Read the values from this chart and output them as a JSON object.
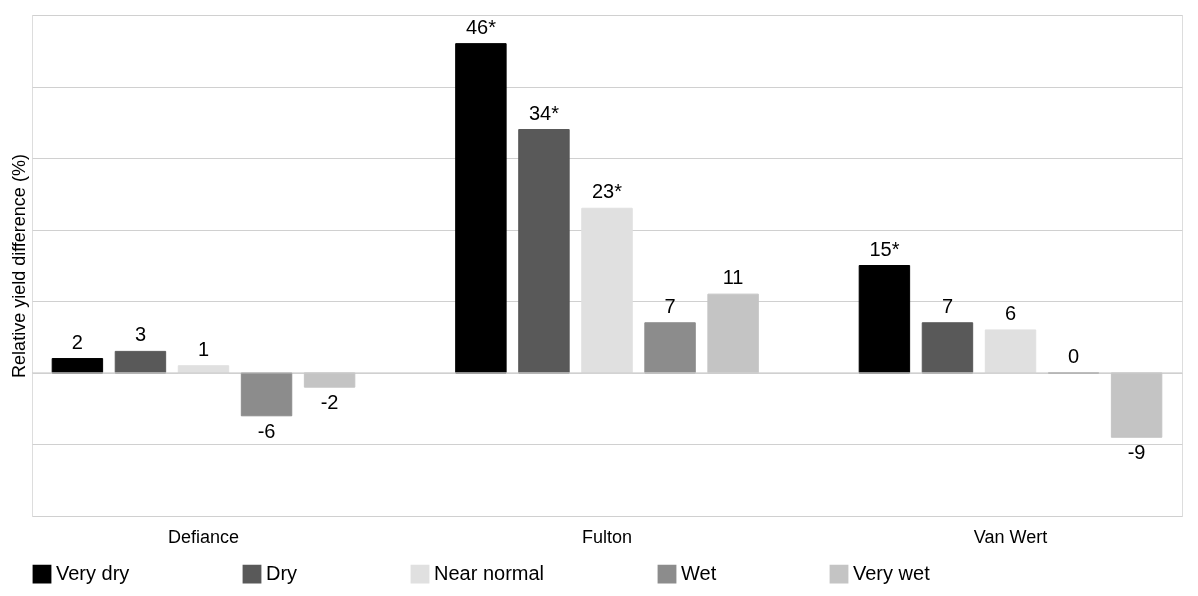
{
  "chart_data": {
    "type": "bar",
    "ylabel": "Relative yield difference (%)",
    "categories": [
      "Defiance",
      "Fulton",
      "Van Wert"
    ],
    "series": [
      {
        "name": "Very dry",
        "color": "#000000",
        "values": [
          2,
          46,
          15
        ],
        "value_labels": [
          "2",
          "46*",
          "15*"
        ]
      },
      {
        "name": "Dry",
        "color": "#595959",
        "values": [
          3,
          34,
          7
        ],
        "value_labels": [
          "3",
          "34*",
          "7"
        ]
      },
      {
        "name": "Near normal",
        "color": "#e0e0e0",
        "values": [
          1,
          23,
          6
        ],
        "value_labels": [
          "1",
          "23*",
          "6"
        ]
      },
      {
        "name": "Wet",
        "color": "#8c8c8c",
        "values": [
          -6,
          7,
          0
        ],
        "value_labels": [
          "-6",
          "7",
          "0"
        ]
      },
      {
        "name": "Very wet",
        "color": "#c4c4c4",
        "values": [
          -2,
          11,
          -9
        ],
        "value_labels": [
          "-2",
          "11",
          "-9"
        ]
      }
    ],
    "ylim": [
      -20,
      50
    ],
    "yticks": [
      {
        "value": -20,
        "label": null
      },
      {
        "value": -10,
        "label": null
      },
      {
        "value": 0,
        "label": null
      },
      {
        "value": 10,
        "label": null
      },
      {
        "value": 20,
        "label": null
      },
      {
        "value": 30,
        "label": null
      },
      {
        "value": 40,
        "label": null
      },
      {
        "value": 50,
        "label": null
      }
    ],
    "grid": "y",
    "tick_labels": "x",
    "legend": "bottom"
  }
}
